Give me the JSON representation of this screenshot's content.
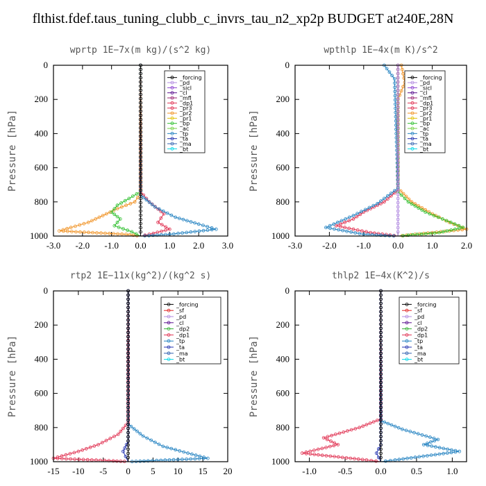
{
  "page_title": "flthist.fdef.taus_tuning_clubb_c_invrs_tau_n2_xp2p  BUDGET at240E,28N",
  "y_axis": {
    "label": "Pressure [hPa]",
    "ticks": [
      0,
      200,
      400,
      600,
      800,
      1000
    ],
    "range": [
      0,
      1000
    ],
    "inverted": true
  },
  "colors": {
    "_forcing": "#000000",
    "_pd": "#b088e0",
    "_sicl": "#8a3fd0",
    "_cl": "#5a1090",
    "_mfl": "#9a2070",
    "_dp1": "#e03050",
    "_pr3": "#e03050",
    "_pr2": "#f09020",
    "_pr1": "#e0c000",
    "_bp": "#30c030",
    "_ac": "#70d040",
    "_tp": "#2080c0",
    "_ta": "#2030b0",
    "_ma": "#3060b0",
    "_bt": "#00d8e8",
    "_sf": "#e02020",
    "_dp2": "#30b030"
  },
  "chart_data": [
    {
      "type": "line",
      "title": "wprtp  1E−7x(m kg)/(s^2 kg)",
      "ylabel": "Pressure [hPa]",
      "xlim": [
        -3,
        3
      ],
      "xticks": [
        "-3.0",
        "-2.0",
        "-1.0",
        "0.0",
        "1.0",
        "2.0",
        "3.0"
      ],
      "xtick_values": [
        -3,
        -2,
        -1,
        0,
        1,
        2,
        3
      ],
      "legend": [
        "_forcing",
        "_pd",
        "_sicl",
        "_cl",
        "_mfl",
        "_dp1",
        "_pr3",
        "_pr2",
        "_pr1",
        "_bp",
        "_ac",
        "_tp",
        "_ta",
        "_ma",
        "_bt"
      ],
      "series": [
        {
          "name": "_pr2",
          "x": [
            0,
            0,
            -0.2,
            -0.8,
            -1.3,
            -1.8,
            -2.4,
            -2.8,
            -0.5,
            0
          ],
          "y": [
            0,
            750,
            800,
            840,
            880,
            920,
            950,
            970,
            990,
            1000
          ]
        },
        {
          "name": "_bp",
          "x": [
            0,
            0,
            -0.4,
            -0.8,
            -1.0,
            -0.7,
            -0.9,
            -0.3,
            0
          ],
          "y": [
            0,
            740,
            780,
            820,
            860,
            900,
            940,
            975,
            1000
          ]
        },
        {
          "name": "_dp1",
          "x": [
            0,
            0,
            0.3,
            0.8,
            0.6,
            1.0,
            0.3,
            0
          ],
          "y": [
            0,
            740,
            800,
            870,
            920,
            960,
            990,
            1000
          ]
        },
        {
          "name": "_tp",
          "x": [
            0,
            0,
            0.5,
            1.2,
            2.0,
            2.6,
            1.0,
            0
          ],
          "y": [
            0,
            760,
            830,
            890,
            930,
            960,
            990,
            1000
          ]
        },
        {
          "name": "_forcing",
          "x": [
            0,
            0
          ],
          "y": [
            0,
            1000
          ]
        }
      ]
    },
    {
      "type": "line",
      "title": "wpthlp  1E−4x(m K)/s^2",
      "ylabel": "Pressure [hPa]",
      "xlim": [
        -3,
        2
      ],
      "xticks": [
        "-3.0",
        "-2.0",
        "-1.0",
        "0.0",
        "1.0",
        "2.0"
      ],
      "xtick_values": [
        -3,
        -2,
        -1,
        0,
        1,
        2
      ],
      "legend": [
        "_forcing",
        "_pd",
        "_sicl",
        "_cl",
        "_mfl",
        "_dp1",
        "_pr3",
        "_pr2",
        "_pr1",
        "_bp",
        "_ac",
        "_tp",
        "_ta",
        "_ma",
        "_bt"
      ],
      "series": [
        {
          "name": "_pr2",
          "x": [
            0.1,
            0.2,
            0,
            0,
            0.4,
            1.0,
            1.5,
            2.0,
            0.5,
            0
          ],
          "y": [
            0,
            100,
            200,
            720,
            800,
            870,
            920,
            960,
            990,
            1000
          ]
        },
        {
          "name": "_bp",
          "x": [
            0,
            0,
            0.3,
            0.8,
            1.3,
            1.9,
            1.2,
            0.3,
            0
          ],
          "y": [
            0,
            740,
            800,
            860,
            900,
            950,
            980,
            995,
            1000
          ]
        },
        {
          "name": "_dp1",
          "x": [
            0,
            0,
            -0.4,
            -1.0,
            -1.3,
            -1.8,
            -0.8,
            0
          ],
          "y": [
            0,
            730,
            800,
            860,
            900,
            940,
            980,
            1000
          ]
        },
        {
          "name": "_tp",
          "x": [
            -0.4,
            -0.1,
            0,
            -0.6,
            -1.3,
            -2.1,
            -1.0,
            0
          ],
          "y": [
            0,
            80,
            720,
            810,
            880,
            950,
            990,
            1000
          ]
        },
        {
          "name": "_pd",
          "x": [
            0,
            0
          ],
          "y": [
            0,
            1000
          ]
        }
      ]
    },
    {
      "type": "line",
      "title": "rtp2  1E−11x(kg^2)/(kg^2 s)",
      "ylabel": "Pressure [hPa]",
      "xlim": [
        -15,
        20
      ],
      "xticks": [
        "-15",
        "-10",
        "-5",
        "0",
        "5",
        "10",
        "15",
        "20"
      ],
      "xtick_values": [
        -15,
        -10,
        -5,
        0,
        5,
        10,
        15,
        20
      ],
      "legend": [
        "_forcing",
        "_sf",
        "_pd",
        "_cl",
        "_dp2",
        "_dp1",
        "_tp",
        "_ta",
        "_ma",
        "_bt"
      ],
      "series": [
        {
          "name": "_dp1",
          "x": [
            0,
            0,
            -2,
            -6,
            -10,
            -15,
            -3,
            0
          ],
          "y": [
            0,
            770,
            840,
            900,
            940,
            980,
            995,
            1000
          ]
        },
        {
          "name": "_tp",
          "x": [
            0,
            0,
            3,
            7,
            12,
            16,
            4,
            0
          ],
          "y": [
            0,
            780,
            850,
            910,
            950,
            980,
            995,
            1000
          ]
        },
        {
          "name": "_ta",
          "x": [
            0,
            0,
            -1,
            -0.5,
            0
          ],
          "y": [
            0,
            880,
            940,
            970,
            1000
          ]
        },
        {
          "name": "_forcing",
          "x": [
            0,
            0
          ],
          "y": [
            0,
            1000
          ]
        }
      ]
    },
    {
      "type": "line",
      "title": "thlp2  1E−4x(K^2)/s",
      "ylabel": "Pressure [hPa]",
      "xlim": [
        -1.2,
        1.2
      ],
      "xticks": [
        "-1.0",
        "-0.5",
        "0.0",
        "0.5",
        "1.0"
      ],
      "xtick_values": [
        -1.0,
        -0.5,
        0.0,
        0.5,
        1.0
      ],
      "legend": [
        "_forcing",
        "_sf",
        "_pd",
        "_cl",
        "_dp2",
        "_dp1",
        "_tp",
        "_ta",
        "_ma",
        "_bt"
      ],
      "series": [
        {
          "name": "_dp1",
          "x": [
            0,
            0,
            -0.3,
            -0.8,
            -0.6,
            -1.1,
            -0.2,
            0
          ],
          "y": [
            0,
            750,
            800,
            860,
            900,
            950,
            990,
            1000
          ]
        },
        {
          "name": "_tp",
          "x": [
            0,
            0,
            0.3,
            0.8,
            0.6,
            1.1,
            0.2,
            0
          ],
          "y": [
            0,
            760,
            810,
            870,
            900,
            940,
            990,
            1000
          ]
        },
        {
          "name": "_ta",
          "x": [
            0,
            0,
            -0.06,
            0
          ],
          "y": [
            0,
            900,
            950,
            1000
          ]
        },
        {
          "name": "_forcing",
          "x": [
            0,
            0
          ],
          "y": [
            0,
            1000
          ]
        }
      ]
    }
  ]
}
